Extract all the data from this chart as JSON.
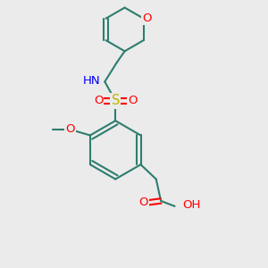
{
  "bg_color": "#ebebeb",
  "bond_color": "#2d7d6e",
  "bond_width": 1.5,
  "atom_colors": {
    "O": "#ff0000",
    "N": "#0000ff",
    "S": "#b8b800",
    "C": "#2d7d6e"
  },
  "font_size": 9.5
}
